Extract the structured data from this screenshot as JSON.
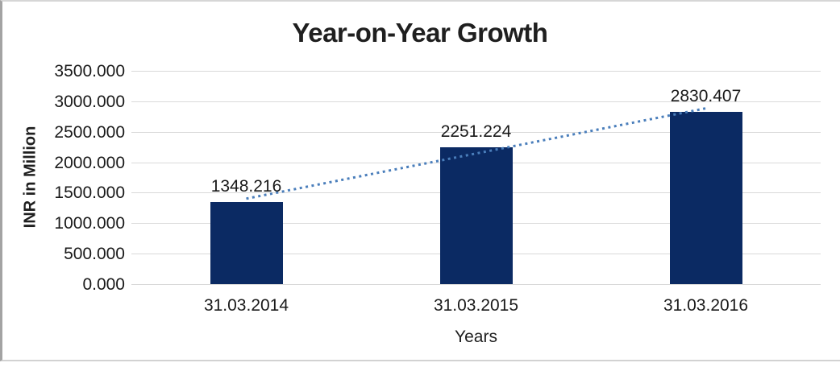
{
  "title": "Year-on-Year Growth",
  "chart_data": {
    "type": "bar",
    "title": "Year-on-Year Growth",
    "categories": [
      "31.03.2014",
      "31.03.2015",
      "31.03.2016"
    ],
    "values": [
      1348.216,
      2251.224,
      2830.407
    ],
    "data_labels": [
      "1348.216",
      "2251.224",
      "2830.407"
    ],
    "xlabel": "Years",
    "ylabel": "INR in Million",
    "ylim": [
      0,
      3500
    ],
    "ytick_step": 500,
    "ytick_labels": [
      "0.000",
      "500.000",
      "1000.000",
      "1500.000",
      "2000.000",
      "2500.000",
      "3000.000",
      "3500.000"
    ],
    "grid": true,
    "legend": "none",
    "trendline": {
      "type": "linear",
      "style": "dotted"
    }
  },
  "colors": {
    "bar": "#0b2a63",
    "trendline": "#4a7ebb",
    "gridline": "#d9d9d9",
    "text": "#1a1a1a",
    "frame_border": "#c9c9c9",
    "background": "#ffffff"
  }
}
